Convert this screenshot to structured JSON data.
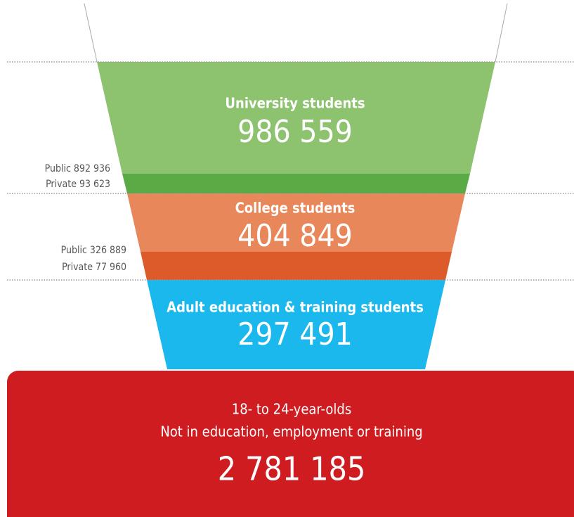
{
  "sections": [
    {
      "title": "University students",
      "total": "986 559",
      "breakdown": [
        "Public 892 936",
        "Private 93 623"
      ]
    },
    {
      "title": "College students",
      "total": "404 849",
      "breakdown": [
        "Public 326 889",
        "Private 77 960"
      ]
    },
    {
      "title": "Adult education & training students",
      "total": "297 491"
    }
  ],
  "neet": {
    "lines": [
      "18- to 24-year-olds",
      "Not in education, employment or training"
    ],
    "total": "2 781 185"
  }
}
